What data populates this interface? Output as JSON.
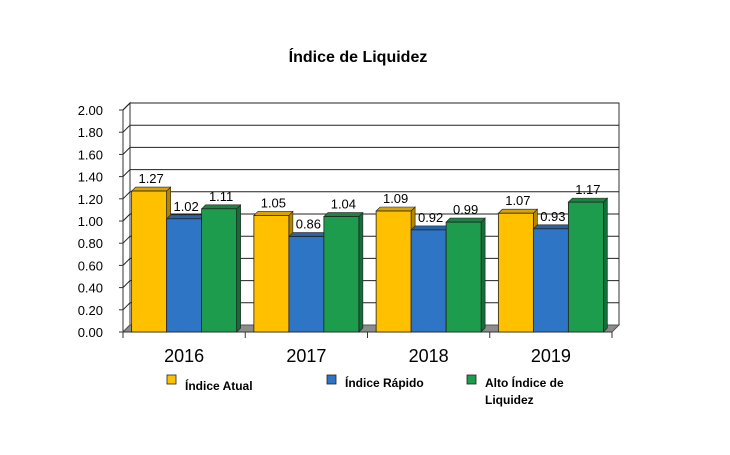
{
  "chart_data": {
    "type": "bar",
    "title": "Índice de Liquidez",
    "categories": [
      "2016",
      "2017",
      "2018",
      "2019"
    ],
    "series": [
      {
        "name": "Índice Atual",
        "color": "#FFC000",
        "values": [
          1.27,
          1.05,
          1.09,
          1.07
        ],
        "labels": [
          "1.27",
          "1.05",
          "1.09",
          "1.07"
        ]
      },
      {
        "name": "Índice Rápido",
        "color": "#2E75C6",
        "values": [
          1.02,
          0.86,
          0.92,
          0.93
        ],
        "labels": [
          "1.02",
          "0.86",
          "0.92",
          "0.93"
        ]
      },
      {
        "name": "Alto Índice de Liquidez",
        "color": "#1E9C4E",
        "values": [
          1.11,
          1.04,
          0.99,
          1.17
        ],
        "labels": [
          "1.11",
          "1.04",
          "0.99",
          "1.17"
        ]
      }
    ],
    "ylim": [
      0,
      2
    ],
    "yticks": [
      "0.00",
      "0.20",
      "0.40",
      "0.60",
      "0.80",
      "1.00",
      "1.20",
      "1.40",
      "1.60",
      "1.80",
      "2.00"
    ],
    "grid": true,
    "legend": "bottom",
    "legend_lines": [
      [
        "Índice Atual"
      ],
      [
        "Índice Rápido"
      ],
      [
        "Alto Índice de",
        "Liquidez"
      ]
    ]
  }
}
